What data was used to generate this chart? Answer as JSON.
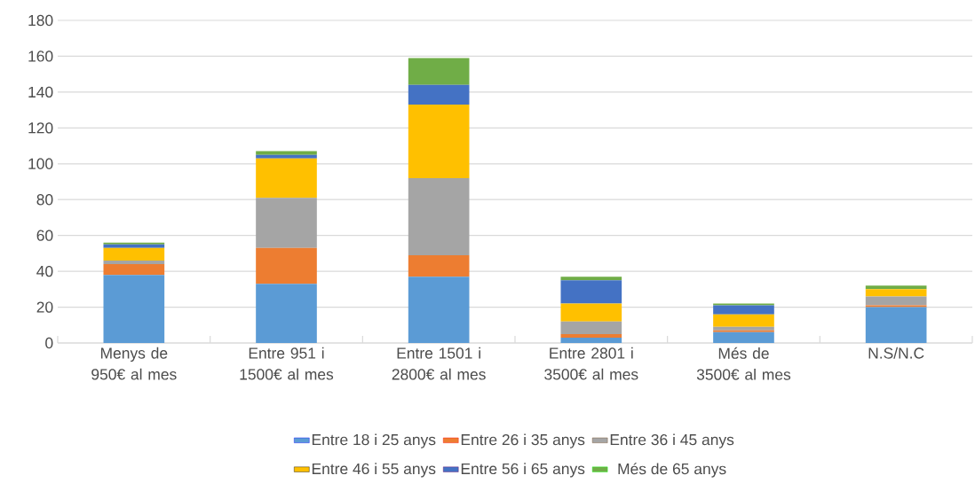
{
  "chart_data": {
    "type": "bar",
    "stacked": true,
    "categories": [
      "Menys de 950€ al mes",
      "Entre 951 i 1500€ al mes",
      "Entre 1501 i 2800€ al mes",
      "Entre 2801 i 3500€ al mes",
      "Més de 3500€ al mes",
      "N.S/N.C"
    ],
    "series": [
      {
        "name": "Entre 18 i 25 anys",
        "color": "#5b9bd5",
        "values": [
          38,
          33,
          37,
          3,
          6,
          20
        ]
      },
      {
        "name": "Entre 26 i 35 anys",
        "color": "#ed7d31",
        "values": [
          6,
          20,
          12,
          2,
          1,
          1
        ]
      },
      {
        "name": "Entre 36 i 45 anys",
        "color": "#a5a5a5",
        "values": [
          2,
          28,
          43,
          7,
          2,
          5
        ]
      },
      {
        "name": "Entre 46 i 55 anys",
        "color": "#ffc000",
        "values": [
          7,
          22,
          41,
          10,
          7,
          4
        ]
      },
      {
        "name": "Entre 56 i 65 anys",
        "color": "#4472c4",
        "values": [
          2,
          2,
          11,
          13,
          5,
          0
        ]
      },
      {
        "name": "Més de 65 anys",
        "color": "#70ad47",
        "values": [
          1,
          2,
          15,
          2,
          1,
          2
        ]
      }
    ],
    "ylim": [
      0,
      180
    ],
    "yticks": [
      0,
      20,
      40,
      60,
      80,
      100,
      120,
      140,
      160,
      180
    ],
    "grid": "y",
    "legend": "bottom"
  }
}
